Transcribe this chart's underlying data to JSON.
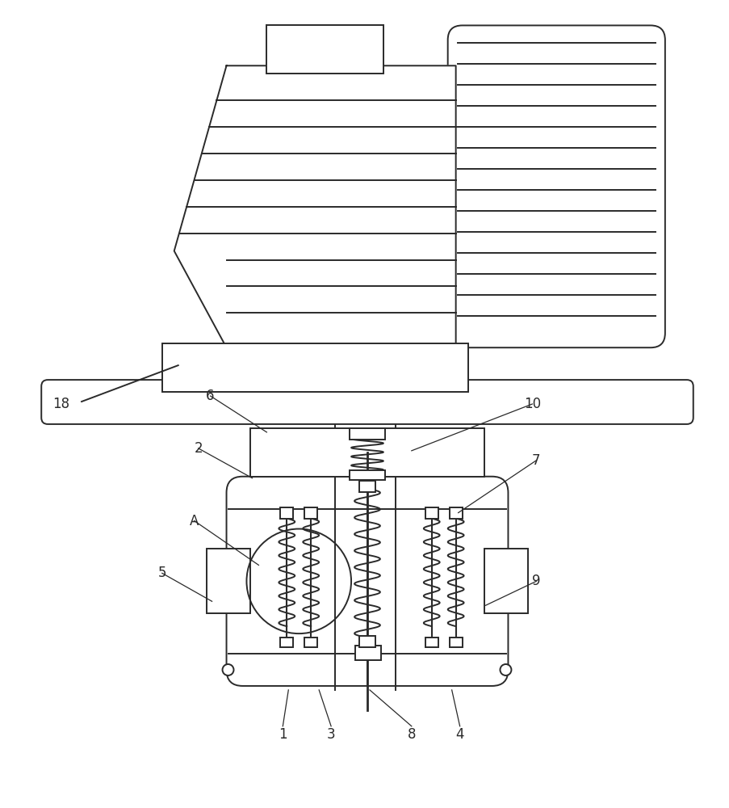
{
  "bg_color": "#ffffff",
  "line_color": "#2a2a2a",
  "lw": 1.4,
  "fig_w": 9.04,
  "fig_h": 10.0
}
